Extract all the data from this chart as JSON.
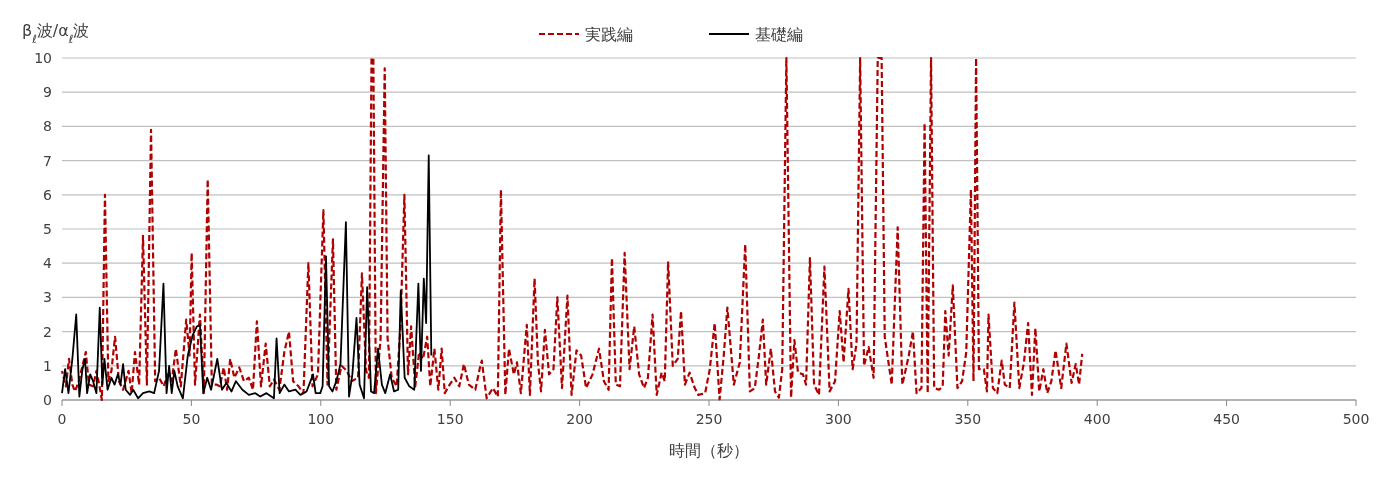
{
  "chart_data": {
    "type": "line",
    "xlabel": "時間（秒）",
    "ylabel": "β$_{ℓ}$波/α$_{ℓ}$波",
    "xlim": [
      0,
      500
    ],
    "ylim": [
      0,
      10
    ],
    "xticks": [
      0,
      50,
      100,
      150,
      200,
      250,
      300,
      350,
      400,
      450,
      500
    ],
    "yticks": [
      0,
      1,
      2,
      3,
      4,
      5,
      6,
      7,
      8,
      9,
      10
    ],
    "grid": "y",
    "legend": "top",
    "series": [
      {
        "name": "実践編",
        "color": "#b00000",
        "line_style": "dashed",
        "x": [
          0,
          1.5,
          2.7,
          4,
          5,
          6.5,
          7.9,
          9.2,
          10.4,
          12,
          13.3,
          14.5,
          15.4,
          16.6,
          17.9,
          19.1,
          20.5,
          22,
          23.6,
          25.7,
          26.9,
          28.2,
          29.8,
          31.3,
          32.8,
          34.4,
          36,
          37.5,
          39.3,
          40.9,
          42.4,
          44,
          45.9,
          48,
          49.3,
          50.1,
          51.4,
          53.3,
          54.8,
          56.3,
          57.9,
          59.6,
          61,
          62.5,
          63.8,
          65,
          66.6,
          68.5,
          70.3,
          72.2,
          73.8,
          75.3,
          76.9,
          78.7,
          80.3,
          81.9,
          84,
          85.9,
          87.7,
          89.3,
          91.4,
          93.3,
          95.2,
          96.8,
          98.9,
          101,
          102.6,
          104.7,
          106,
          108,
          110.1,
          111.9,
          114.4,
          115.9,
          117.5,
          118.6,
          119.6,
          120.3,
          121.3,
          123.1,
          124.7,
          125.8,
          127.4,
          129.3,
          130.8,
          132.3,
          133.7,
          134.9,
          136.5,
          138,
          139.5,
          141.1,
          142.3,
          143.9,
          145.4,
          146.7,
          147.9,
          149.8,
          151.6,
          153.5,
          155.3,
          157.2,
          159.7,
          161.5,
          162.2,
          164.1,
          166.5,
          168.4,
          169.6,
          171.3,
          172.7,
          174.6,
          175.8,
          177.3,
          179.6,
          180.8,
          182.6,
          183.9,
          185.1,
          186.6,
          188.2,
          189.9,
          191.4,
          193.2,
          195.3,
          196.9,
          198.8,
          200.6,
          202.5,
          205,
          207.5,
          209.4,
          211.2,
          212.5,
          214,
          215.6,
          217.4,
          219.3,
          221.1,
          223,
          224.9,
          226.4,
          228.2,
          229.8,
          231.7,
          232.9,
          234.2,
          236,
          237.9,
          239.2,
          240.7,
          242.5,
          244.5,
          245.9,
          248.5,
          250.3,
          252.2,
          254.1,
          255.7,
          257.1,
          259.6,
          261.9,
          264,
          265.8,
          267.7,
          269.3,
          270.8,
          272.1,
          273.9,
          275.5,
          277,
          278.3,
          279.9,
          281.7,
          283,
          284.4,
          286.3,
          287.5,
          289,
          290.6,
          292.5,
          294.6,
          296.6,
          298.7,
          300.5,
          302,
          303.9,
          305.5,
          307,
          308.4,
          309.9,
          311.7,
          313.6,
          315.2,
          316.7,
          317.9,
          320.6,
          322.9,
          324.7,
          325.3,
          327.2,
          328.8,
          330.2,
          332.1,
          333.3,
          334.5,
          335.8,
          337,
          338.9,
          340.3,
          341.3,
          342.6,
          344.2,
          346,
          347.8,
          349.4,
          351.2,
          352.2,
          353.2,
          354.3,
          356.2,
          357.4,
          358,
          359.7,
          361.4,
          363.1,
          364.3,
          366.2,
          368,
          369.9,
          371.7,
          373.3,
          374.8,
          376.1,
          377.6,
          379.2,
          380.7,
          382.3,
          383.9,
          386.1,
          388.1,
          390.1,
          391.7,
          393,
          394.2
        ],
        "values": [
          0.85,
          0.4,
          1.2,
          0.45,
          0.25,
          0.55,
          1.0,
          1.4,
          0.45,
          0.4,
          0.85,
          0.4,
          0.0,
          6.0,
          0.55,
          0.85,
          1.85,
          0.55,
          0.3,
          0.85,
          0.2,
          1.4,
          0.45,
          4.8,
          0.45,
          7.9,
          0.55,
          0.65,
          0.4,
          0.75,
          0.55,
          1.5,
          0.4,
          2.35,
          1.3,
          4.3,
          0.45,
          2.5,
          0.2,
          6.45,
          0.45,
          0.45,
          0.4,
          0.95,
          0.3,
          1.2,
          0.65,
          0.95,
          0.55,
          0.65,
          0.3,
          2.3,
          0.4,
          1.65,
          0.4,
          0.6,
          0.3,
          1.4,
          2.0,
          0.55,
          0.4,
          0.2,
          4.0,
          0.4,
          0.75,
          5.55,
          0.45,
          4.7,
          0.3,
          1.0,
          0.85,
          0.55,
          0.65,
          3.7,
          0.85,
          0.65,
          10,
          10,
          0.2,
          1.8,
          9.7,
          1.8,
          0.65,
          0.4,
          2.15,
          6.0,
          0.75,
          2.15,
          0.4,
          1.4,
          1.2,
          1.85,
          0.4,
          1.5,
          0.3,
          1.5,
          0.2,
          0.45,
          0.65,
          0.4,
          1.05,
          0.45,
          0.3,
          0.95,
          1.15,
          0.05,
          0.35,
          0.1,
          6.15,
          0.15,
          1.5,
          0.75,
          1.1,
          0.2,
          2.2,
          0.15,
          3.55,
          1.1,
          0.25,
          2.05,
          0.75,
          0.9,
          3.0,
          0.35,
          3.05,
          0.15,
          1.45,
          1.3,
          0.35,
          0.75,
          1.5,
          0.55,
          0.3,
          4.15,
          0.45,
          0.4,
          4.3,
          0.9,
          2.15,
          0.75,
          0.35,
          0.65,
          2.5,
          0.15,
          0.8,
          0.55,
          4.05,
          1.0,
          1.2,
          2.6,
          0.45,
          0.8,
          0.35,
          0.15,
          0.2,
          0.9,
          2.25,
          0.02,
          1.3,
          2.7,
          0.45,
          1.1,
          4.55,
          0.25,
          0.35,
          1.3,
          2.35,
          0.45,
          1.5,
          0.25,
          0.07,
          0.9,
          10,
          0.07,
          1.75,
          0.8,
          0.75,
          0.45,
          4.15,
          0.45,
          0.15,
          3.9,
          0.25,
          0.55,
          2.6,
          1.1,
          3.25,
          0.9,
          1.65,
          10,
          1.0,
          1.55,
          0.65,
          10,
          10,
          1.85,
          0.45,
          5.05,
          0.45,
          0.65,
          1.3,
          2.0,
          0.2,
          0.35,
          8.1,
          0.2,
          10,
          0.35,
          0.3,
          0.4,
          2.6,
          1.3,
          3.35,
          0.35,
          0.55,
          1.4,
          6.15,
          0.55,
          10,
          0.9,
          0.9,
          0.25,
          2.5,
          0.35,
          0.2,
          1.15,
          0.45,
          0.35,
          2.85,
          0.35,
          1.1,
          2.25,
          0.15,
          2.1,
          0.25,
          0.9,
          0.2,
          0.55,
          1.45,
          0.35,
          1.65,
          0.5,
          1.05,
          0.45,
          1.35
        ]
      },
      {
        "name": "基礎編",
        "color": "#000000",
        "line_style": "solid",
        "x": [
          0,
          1.2,
          2.5,
          4,
          5.5,
          6.7,
          7.9,
          8.9,
          9.7,
          10.9,
          12,
          13.3,
          14.6,
          15.6,
          16.4,
          17.6,
          19.1,
          20.3,
          21.6,
          22.6,
          23.6,
          24.6,
          26.3,
          27.5,
          29.4,
          31.3,
          33.7,
          35.6,
          37.5,
          39.2,
          40.4,
          41.4,
          42.4,
          43.4,
          44.7,
          46.7,
          48.6,
          50.5,
          52.1,
          53.3,
          54.6,
          56.1,
          57.6,
          60,
          61.8,
          63.5,
          65.5,
          67.2,
          69.7,
          72.2,
          74.7,
          76.6,
          79,
          81.9,
          82.9,
          84.1,
          85.9,
          87.7,
          90.2,
          92.1,
          94.5,
          97,
          98,
          99.8,
          100.7,
          102,
          103.2,
          104.5,
          106,
          107.6,
          109.7,
          110.9,
          112.2,
          113.8,
          115,
          116.7,
          117.9,
          119.4,
          120.6,
          122.1,
          123.6,
          124.9,
          126.8,
          128.3,
          129.9,
          130.9,
          132.4,
          134.2,
          136.1,
          137.7,
          138.7,
          139.8,
          140.7,
          141.7,
          142.7
        ],
        "values": [
          0.2,
          0.9,
          0.2,
          1.2,
          2.5,
          0.1,
          0.9,
          1.2,
          0.2,
          0.75,
          0.55,
          0.2,
          2.7,
          0.45,
          1.2,
          0.3,
          0.65,
          0.45,
          0.75,
          0.45,
          1.05,
          0.3,
          0.15,
          0.3,
          0.05,
          0.2,
          0.25,
          0.2,
          0.85,
          3.4,
          0.2,
          1.0,
          0.2,
          0.85,
          0.4,
          0.05,
          1.3,
          1.9,
          2.15,
          2.2,
          0.2,
          0.65,
          0.3,
          1.2,
          0.3,
          0.5,
          0.25,
          0.55,
          0.3,
          0.15,
          0.2,
          0.1,
          0.2,
          0.05,
          1.8,
          0.2,
          0.45,
          0.25,
          0.3,
          0.15,
          0.25,
          0.75,
          0.2,
          0.2,
          0.4,
          4.2,
          0.4,
          0.25,
          0.55,
          1.05,
          5.2,
          0.1,
          0.75,
          2.4,
          0.45,
          0.05,
          3.3,
          0.25,
          0.2,
          1.5,
          0.45,
          0.2,
          0.75,
          0.25,
          0.3,
          3.2,
          0.65,
          0.4,
          0.3,
          3.4,
          0.85,
          3.55,
          2.25,
          7.15,
          1.3
        ]
      }
    ]
  }
}
